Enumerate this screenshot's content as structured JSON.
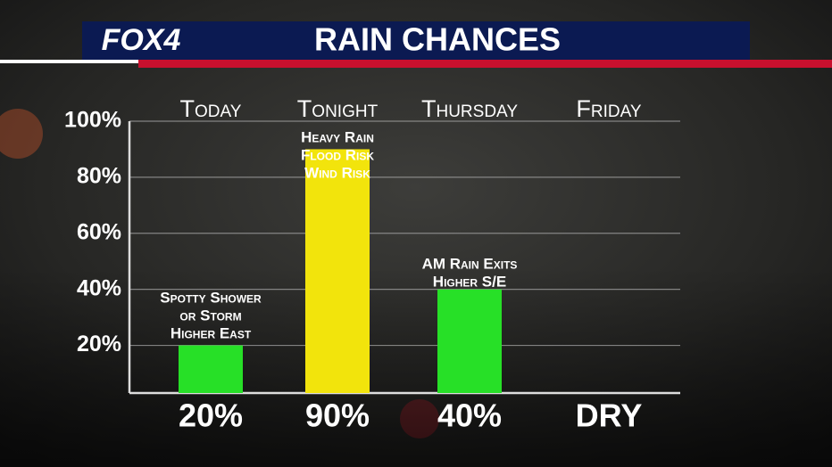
{
  "logo": "FOX4",
  "chart_data": {
    "type": "bar",
    "title": "RAIN CHANCES",
    "categories": [
      "Today",
      "Tonight",
      "Thursday",
      "Friday"
    ],
    "values": [
      20,
      90,
      40,
      null
    ],
    "value_labels": [
      "20%",
      "90%",
      "40%",
      "DRY"
    ],
    "colors": [
      "#27e027",
      "#f2e40c",
      "#27e027",
      "#27e027"
    ],
    "annotations": [
      [
        "Spotty Shower",
        "or Storm",
        "Higher East"
      ],
      [
        "Heavy Rain",
        "Flood Risk",
        "Wind Risk"
      ],
      [
        "AM Rain Exits",
        "Higher S/E"
      ]
    ],
    "ylim": [
      3,
      100
    ],
    "yticks": [
      {
        "value": 20,
        "label": "20%"
      },
      {
        "value": 40,
        "label": "40%"
      },
      {
        "value": 60,
        "label": "60%"
      },
      {
        "value": 80,
        "label": "80%"
      },
      {
        "value": 100,
        "label": "100%"
      }
    ],
    "grid": true
  }
}
